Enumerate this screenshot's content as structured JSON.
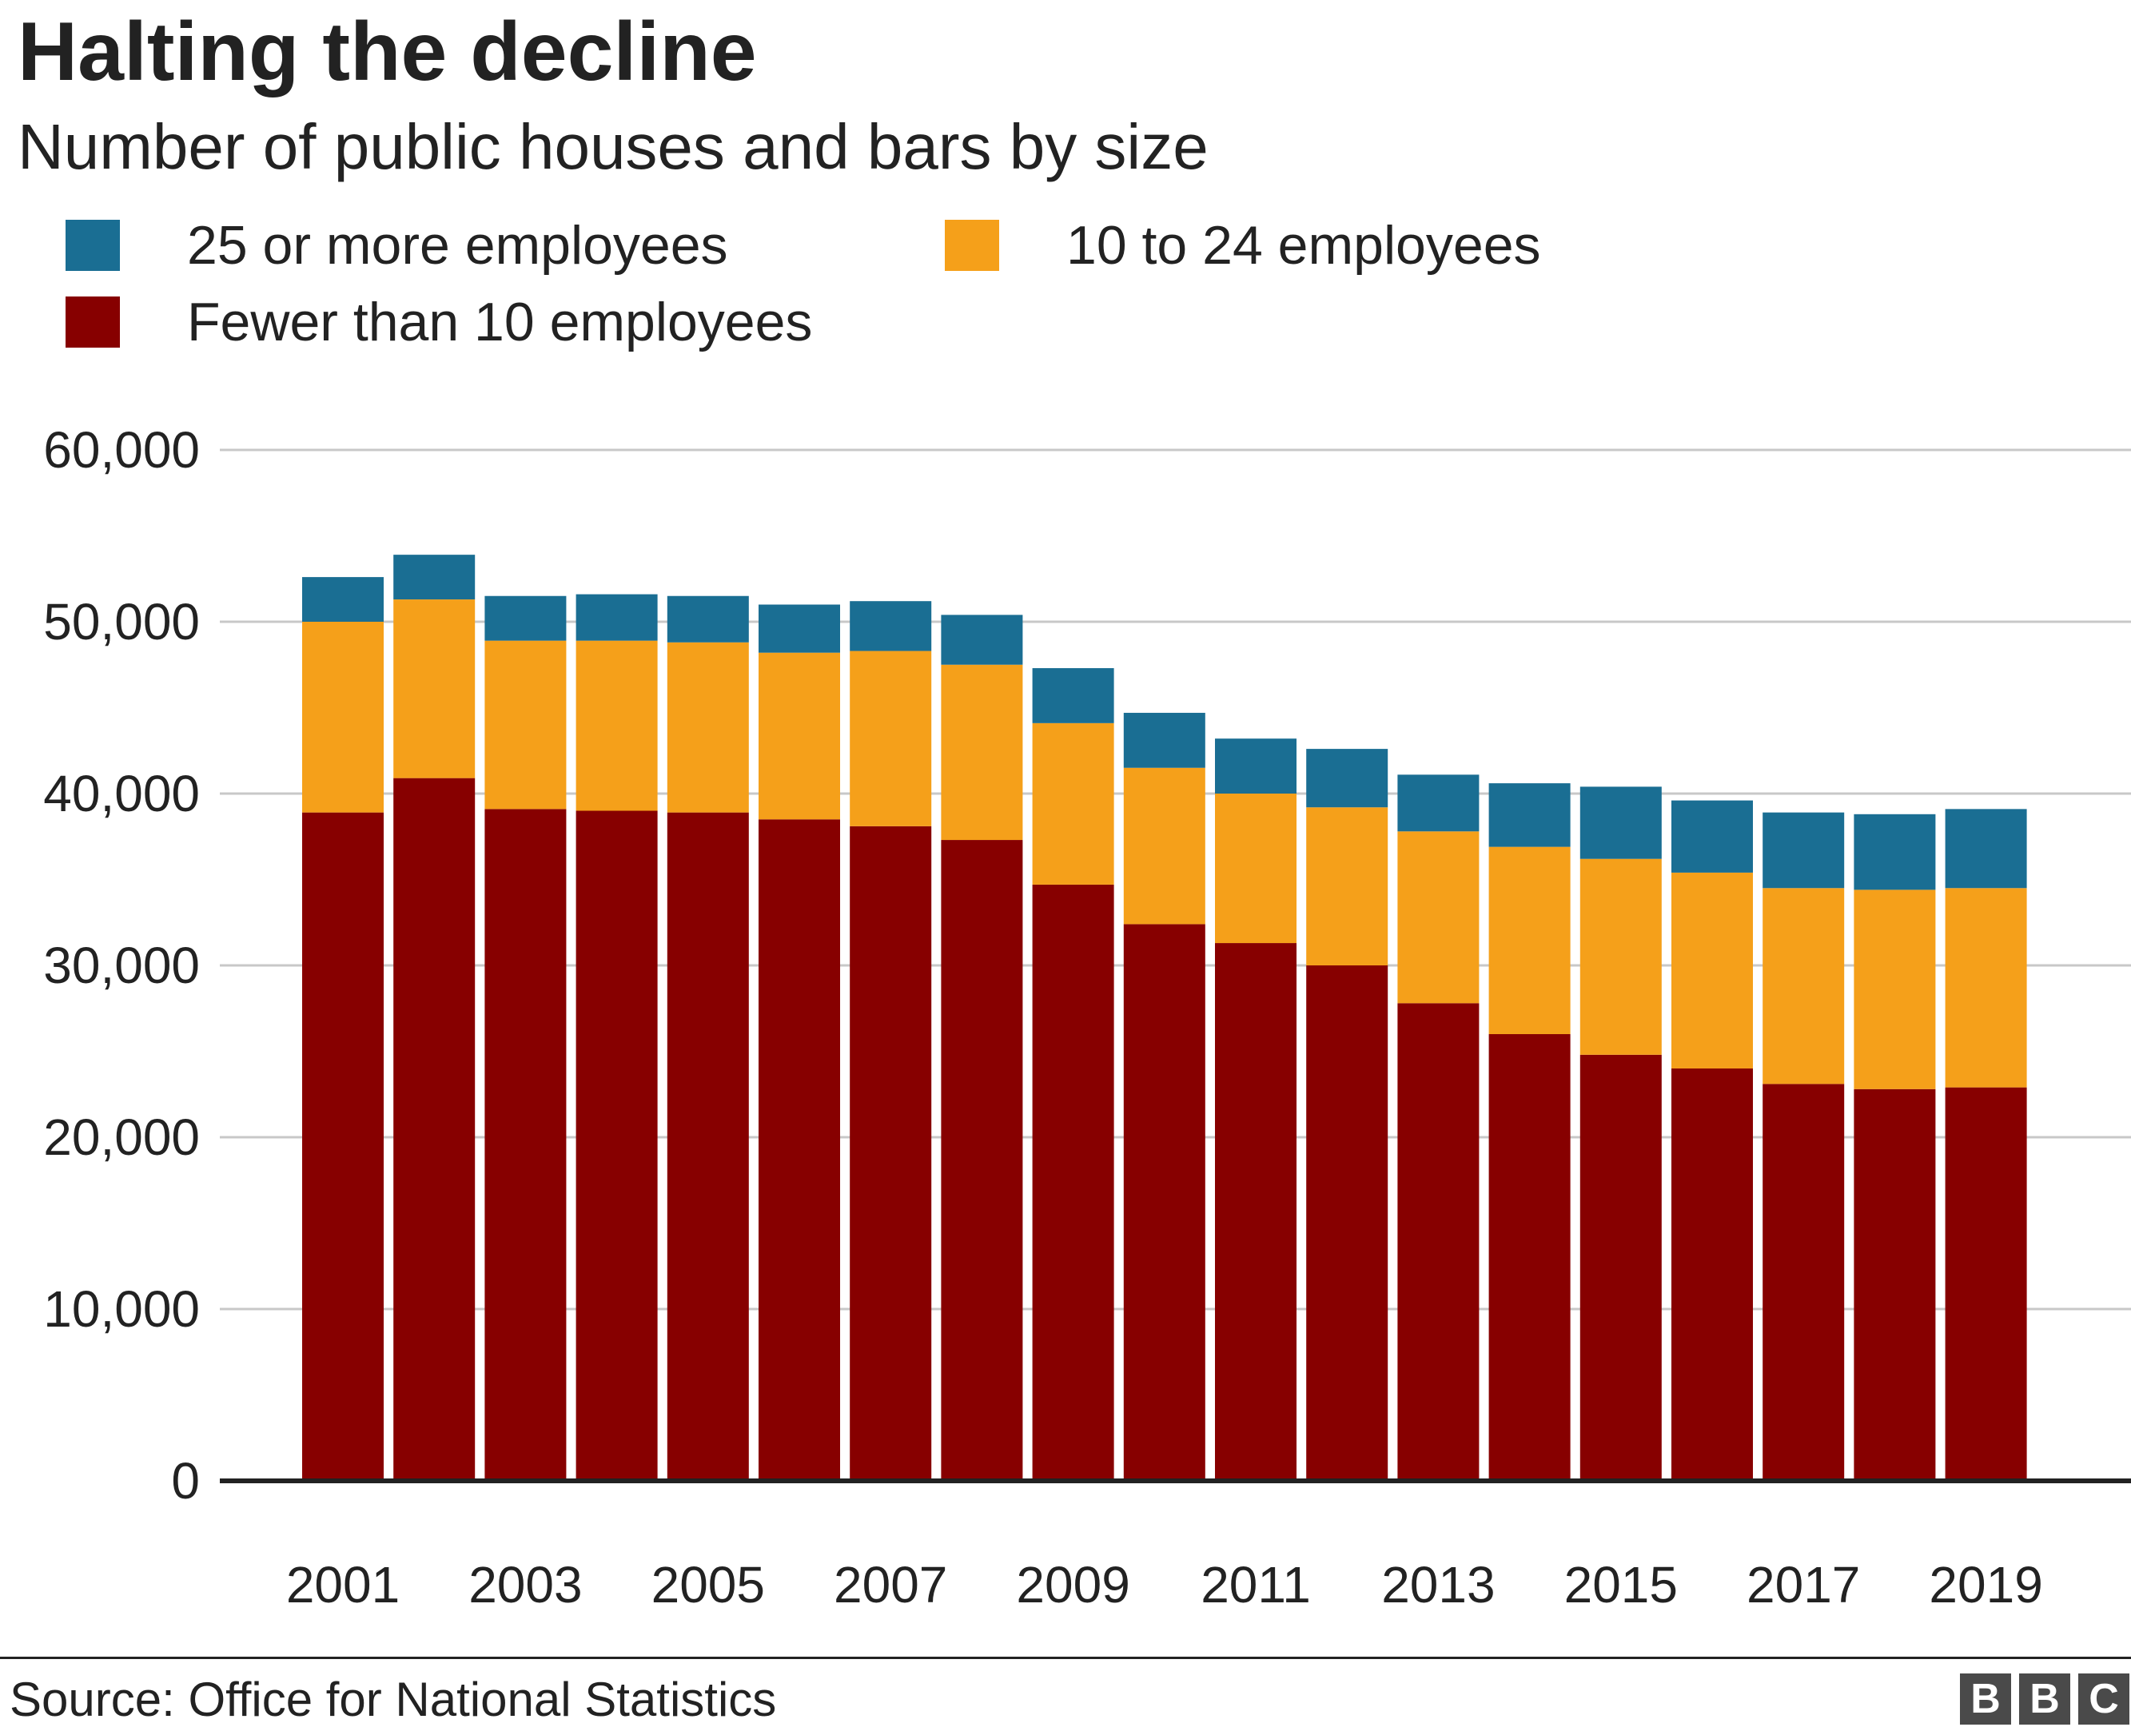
{
  "chart_data": {
    "type": "bar",
    "stacked": true,
    "title": "Halting the decline",
    "subtitle": "Number of public houses and bars by size",
    "categories": [
      "2001",
      "2002",
      "2003",
      "2004",
      "2005",
      "2006",
      "2007",
      "2008",
      "2009",
      "2010",
      "2011",
      "2012",
      "2013",
      "2014",
      "2015",
      "2016",
      "2017",
      "2018",
      "2019"
    ],
    "x_tick_labels": [
      "2001",
      "2003",
      "2005",
      "2007",
      "2009",
      "2011",
      "2013",
      "2015",
      "2017",
      "2019"
    ],
    "series": [
      {
        "name": "Fewer than 10 employees",
        "color": "#870000",
        "values": [
          38900,
          40900,
          39100,
          39000,
          38900,
          38500,
          38100,
          37300,
          34700,
          32400,
          31300,
          30000,
          27800,
          26000,
          24800,
          24000,
          23100,
          22800,
          22900
        ]
      },
      {
        "name": "10 to 24 employees",
        "color": "#f5a01a",
        "values": [
          11100,
          10400,
          9800,
          9900,
          9900,
          9700,
          10200,
          10200,
          9400,
          9100,
          8700,
          9200,
          10000,
          10900,
          11400,
          11400,
          11400,
          11600,
          11600
        ]
      },
      {
        "name": "25 or more employees",
        "color": "#1a6e93",
        "values": [
          2600,
          2600,
          2600,
          2700,
          2700,
          2800,
          2900,
          2900,
          3200,
          3200,
          3200,
          3400,
          3300,
          3700,
          4200,
          4200,
          4400,
          4400,
          4600
        ]
      }
    ],
    "ylim": [
      0,
      60000
    ],
    "yticks": [
      0,
      10000,
      20000,
      30000,
      40000,
      50000,
      60000
    ],
    "ytick_labels": [
      "0",
      "10,000",
      "20,000",
      "30,000",
      "40,000",
      "50,000",
      "60,000"
    ],
    "xlabel": "",
    "ylabel": "",
    "grid": true,
    "legend": "top-left"
  },
  "legend": {
    "items": [
      {
        "label": "25 or more employees",
        "color": "#1a6e93"
      },
      {
        "label": "10 to 24 employees",
        "color": "#f5a01a"
      },
      {
        "label": "Fewer than 10 employees",
        "color": "#870000"
      }
    ]
  },
  "footer": {
    "source": "Source: Office for National Statistics",
    "logo": [
      "B",
      "B",
      "C"
    ]
  }
}
